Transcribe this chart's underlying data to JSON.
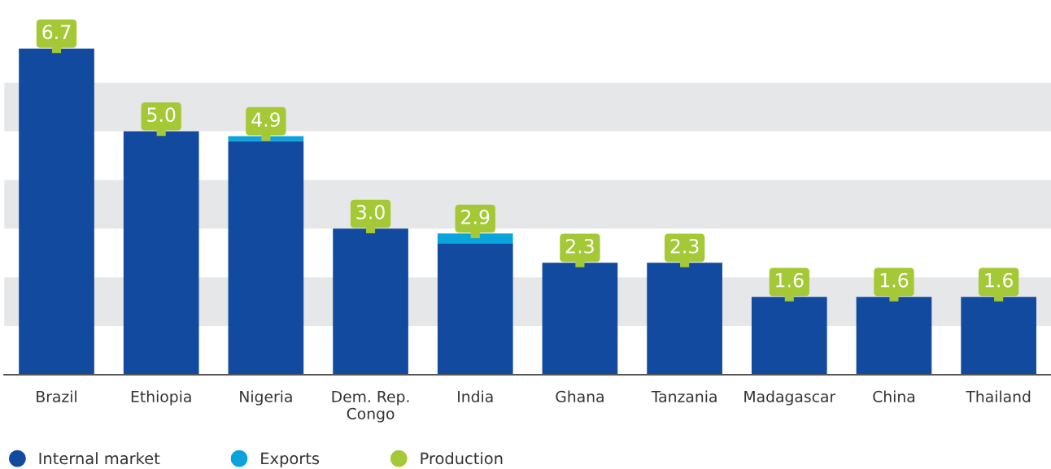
{
  "chart_data": {
    "type": "bar",
    "stacked": true,
    "categories": [
      "Brazil",
      "Ethiopia",
      "Nigeria",
      "Dem. Rep.\nCongo",
      "India",
      "Ghana",
      "Tanzania",
      "Madagascar",
      "China",
      "Thailand"
    ],
    "series": [
      {
        "name": "Internal market",
        "color": "#114a9f",
        "values": [
          6.7,
          5.0,
          4.8,
          3.0,
          2.7,
          2.3,
          2.3,
          1.6,
          1.6,
          1.6
        ]
      },
      {
        "name": "Exports",
        "color": "#0aa3dc",
        "values": [
          0,
          0,
          0.1,
          0,
          0.2,
          0,
          0,
          0,
          0,
          0
        ]
      },
      {
        "name": "Production",
        "color": "#a5c936",
        "type": "scatter",
        "marker": "square",
        "values": [
          6.7,
          5.0,
          4.9,
          3.0,
          2.9,
          2.3,
          2.3,
          1.6,
          1.6,
          1.6
        ],
        "value_labels": [
          "6.7",
          "5.0",
          "4.9",
          "3.0",
          "2.9",
          "2.3",
          "2.3",
          "1.6",
          "1.6",
          "1.6"
        ]
      }
    ],
    "tick_labels": "x",
    "grid": false,
    "legend": "bottom left",
    "bands": [
      {
        "axis": "y",
        "from": 1,
        "to": 2,
        "color": "#e6e7e8"
      },
      {
        "axis": "y",
        "from": 3,
        "to": 4,
        "color": "#e6e7e8"
      },
      {
        "axis": "y",
        "from": 5,
        "to": 6,
        "color": "#e6e7e8"
      }
    ]
  }
}
